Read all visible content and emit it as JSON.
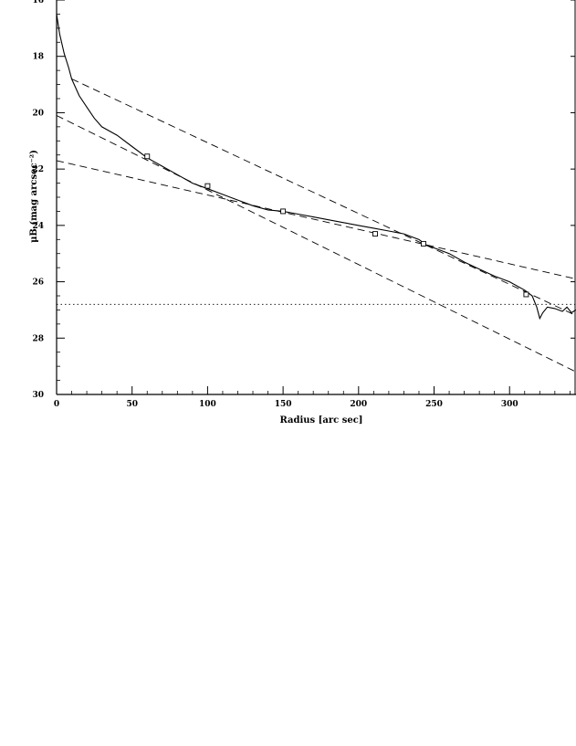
{
  "chart_data": {
    "type": "line",
    "title": "",
    "xlabel": "Radius [arc sec]",
    "ylabel": "μB (mag arcsec⁻²)",
    "xlim": [
      0,
      344
    ],
    "ylim": [
      30,
      16
    ],
    "y_inverted": true,
    "x_ticks": [
      0,
      50,
      100,
      150,
      200,
      250,
      300
    ],
    "x_tick_labels": [
      "0",
      "50",
      "100",
      "150",
      "200",
      "250",
      "300"
    ],
    "y_ticks": [
      16,
      18,
      20,
      22,
      24,
      26,
      28,
      30
    ],
    "y_tick_labels": [
      "16",
      "18",
      "20",
      "22",
      "24",
      "26",
      "28",
      "30"
    ],
    "grid": false,
    "series": [
      {
        "style": "solid",
        "x": [
          0,
          2,
          5,
          8,
          10,
          15,
          20,
          25,
          30,
          40,
          50,
          60,
          70,
          80,
          90,
          100,
          110,
          120,
          130,
          140,
          150,
          160,
          170,
          180,
          190,
          200,
          210,
          220,
          230,
          240,
          245,
          250,
          260,
          270,
          280,
          290,
          300,
          310,
          315,
          318,
          320,
          322,
          325,
          330,
          335,
          338,
          341,
          344
        ],
        "y": [
          16.5,
          17.2,
          17.9,
          18.4,
          18.8,
          19.4,
          19.8,
          20.2,
          20.5,
          20.8,
          21.2,
          21.6,
          21.9,
          22.2,
          22.5,
          22.7,
          22.9,
          23.1,
          23.3,
          23.45,
          23.5,
          23.6,
          23.7,
          23.8,
          23.9,
          24.0,
          24.1,
          24.2,
          24.3,
          24.5,
          24.7,
          24.8,
          25.0,
          25.3,
          25.55,
          25.8,
          26.0,
          26.3,
          26.5,
          26.9,
          27.3,
          27.1,
          26.9,
          26.95,
          27.05,
          26.9,
          27.1,
          27.0
        ]
      },
      {
        "style": "dashed",
        "x": [
          10,
          344
        ],
        "y": [
          18.8,
          27.2
        ]
      },
      {
        "style": "dashed",
        "x": [
          0,
          344
        ],
        "y": [
          20.1,
          29.2
        ]
      },
      {
        "style": "dashed",
        "x": [
          0,
          344
        ],
        "y": [
          21.7,
          25.9
        ]
      },
      {
        "style": "dotted",
        "x": [
          0,
          344
        ],
        "y": [
          26.8,
          26.8
        ]
      }
    ],
    "markers": {
      "shape": "square",
      "x": [
        60,
        100,
        150,
        211,
        243,
        311
      ],
      "y": [
        21.55,
        22.6,
        23.5,
        24.3,
        24.65,
        26.45
      ]
    }
  }
}
